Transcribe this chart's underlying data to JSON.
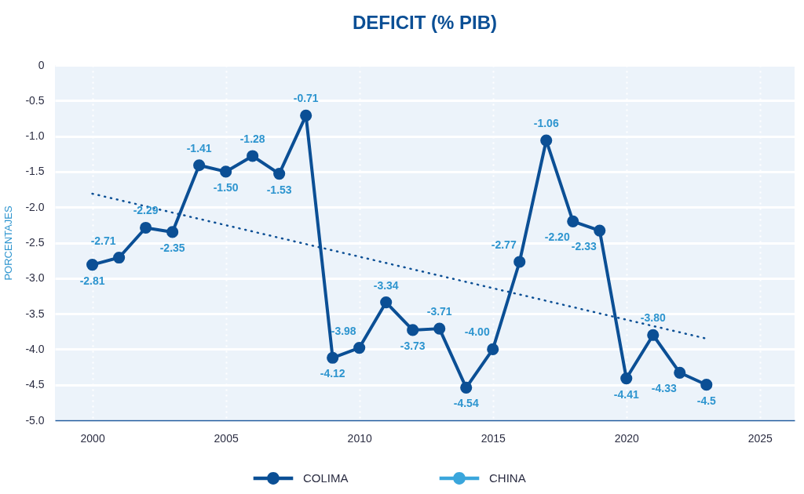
{
  "chart_data": {
    "type": "line",
    "title": "DEFICIT (% PIB)",
    "ylabel": "PORCENTAJES",
    "x": [
      2000,
      2001,
      2002,
      2003,
      2004,
      2005,
      2006,
      2007,
      2008,
      2009,
      2010,
      2011,
      2012,
      2013,
      2014,
      2015,
      2016,
      2017,
      2018,
      2019,
      2020,
      2021,
      2022,
      2023
    ],
    "series": [
      {
        "name": "COLIMA",
        "color": "#0b4f95",
        "values": [
          -2.81,
          -2.71,
          -2.29,
          -2.35,
          -1.41,
          -1.5,
          -1.28,
          -1.53,
          -0.71,
          -4.12,
          -3.98,
          -3.34,
          -3.73,
          -3.71,
          -4.54,
          -4.0,
          -2.77,
          -1.06,
          -2.2,
          -2.33,
          -4.41,
          -3.8,
          -4.33,
          -4.5
        ],
        "value_labels": [
          "-2.81",
          "-2.71",
          "-2.29",
          "-2.35",
          "-1.41",
          "-1.50",
          "-1.28",
          "-1.53",
          "-0.71",
          "-4.12",
          "-3.98",
          "-3.34",
          "-3.73",
          "-3.71",
          "-4.54",
          "-4.00",
          "-2.77",
          "-1.06",
          "-2.20",
          "-2.33",
          "-4.41",
          "-3.80",
          "-4.33",
          "-4.5"
        ]
      },
      {
        "name": "CHINA",
        "color": "#3aa6dc",
        "values": [
          null,
          null,
          null,
          null,
          null,
          null,
          null,
          null,
          null,
          null,
          null,
          null,
          null,
          null,
          null,
          null,
          null,
          null,
          null,
          null,
          null,
          null,
          null,
          null
        ]
      },
      {
        "type": "line",
        "x": [
          2000,
          2023
        ],
        "values": [
          -1.81,
          -3.85
        ],
        "color": "#0b4f95",
        "line_style": "dotted",
        "marker": "none"
      }
    ],
    "xlim": [
      1998.6,
      2026.3
    ],
    "xticks": [
      2000,
      2005,
      2010,
      2015,
      2020,
      2025
    ],
    "ylim": [
      -5,
      0
    ],
    "yticks": [
      0,
      -0.5,
      {
        "value": -1,
        "label": "-1.0"
      },
      -1.5,
      {
        "value": -2,
        "label": "-2.0"
      },
      -2.5,
      {
        "value": -3,
        "label": "-3.0"
      },
      -3.5,
      {
        "value": -4,
        "label": "-4.0"
      },
      -4.5,
      {
        "value": -5,
        "label": "-5.0"
      }
    ],
    "grid": true,
    "legend": "bottom",
    "marker": "circle",
    "line_style": "solid"
  }
}
